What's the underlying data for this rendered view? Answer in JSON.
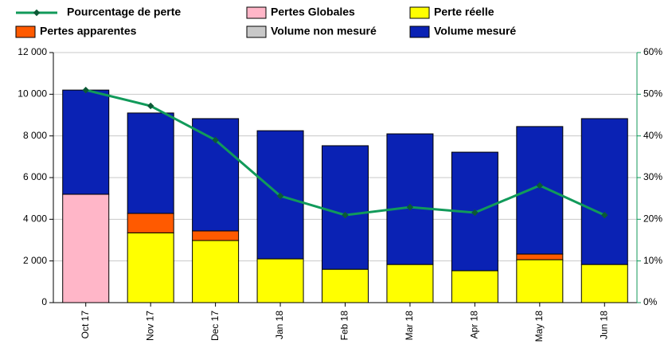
{
  "chart_data": {
    "type": "bar",
    "categories": [
      "Oct 17",
      "Nov 17",
      "Dec 17",
      "Jan 18",
      "Feb 18",
      "Mar 18",
      "Apr 18",
      "May 18",
      "Jun 18"
    ],
    "series": [
      {
        "name": "Pourcentage de perte",
        "color": "#119a5a",
        "type": "line",
        "axis": "y2",
        "values": [
          51,
          47.2,
          39,
          25.6,
          21,
          22.9,
          21.6,
          28.1,
          21
        ]
      },
      {
        "name": "Pertes Globales",
        "color": "#ffb6c8",
        "values": [
          5200,
          null,
          null,
          null,
          null,
          null,
          null,
          null,
          null
        ]
      },
      {
        "name": "Perte réelle",
        "color": "#ffff00",
        "values": [
          null,
          3350,
          2980,
          2100,
          1600,
          1830,
          1530,
          2060,
          1830
        ]
      },
      {
        "name": "Pertes apparentes",
        "color": "#ff5a00",
        "values": [
          null,
          930,
          460,
          null,
          null,
          null,
          null,
          270,
          null
        ]
      },
      {
        "name": "Volume non mesuré",
        "color": "#c8c8c8",
        "values": [
          null,
          null,
          null,
          null,
          null,
          null,
          null,
          null,
          null
        ]
      },
      {
        "name": "Volume mesuré",
        "color": "#0a22b4",
        "values": [
          5000,
          4820,
          5390,
          6150,
          5930,
          6270,
          5690,
          6120,
          7000
        ]
      }
    ],
    "ylim": [
      0,
      12000
    ],
    "yticks": [
      0,
      {
        "value": 2000,
        "label": "2 000"
      },
      {
        "value": 4000,
        "label": "4 000"
      },
      {
        "value": 6000,
        "label": "6 000"
      },
      {
        "value": 8000,
        "label": "8 000"
      },
      {
        "value": 10000,
        "label": "10 000"
      },
      {
        "value": 12000,
        "label": "12 000"
      }
    ],
    "y2lim": [
      0,
      60
    ],
    "y2ticks": [
      {
        "value": 0,
        "label": "0%"
      },
      {
        "value": 10,
        "label": "10%"
      },
      {
        "value": 20,
        "label": "20%"
      },
      {
        "value": 30,
        "label": "30%"
      },
      {
        "value": 40,
        "label": "40%"
      },
      {
        "value": 50,
        "label": "50%"
      },
      {
        "value": 60,
        "label": "60%"
      }
    ],
    "grid": true
  }
}
